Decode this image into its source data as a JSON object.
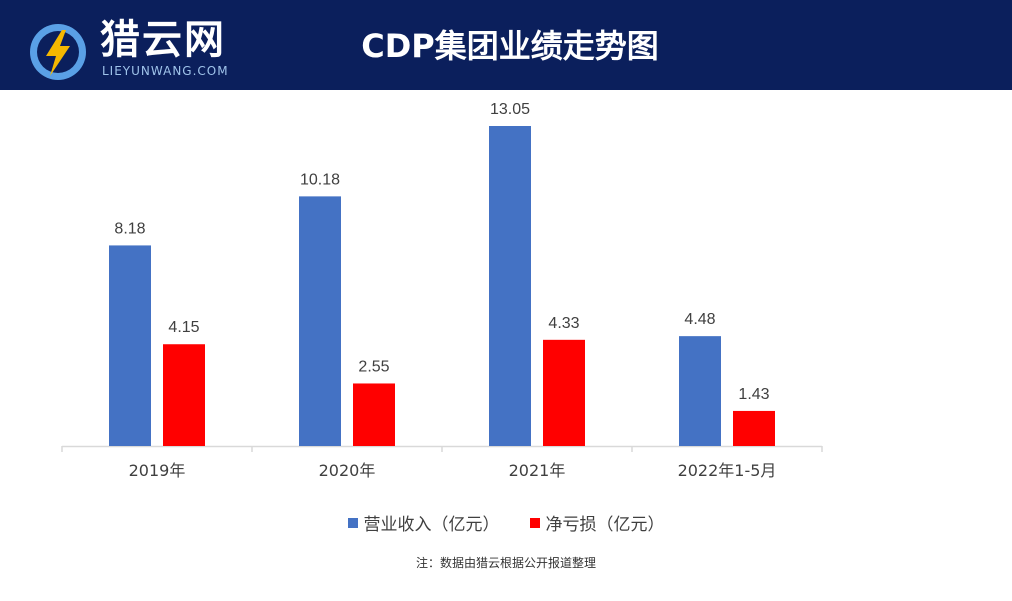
{
  "header": {
    "logo_name": "猎云网",
    "logo_sub": "LIEYUNWANG.COM",
    "logo_icon": "lightning-bolt-icon",
    "title": "CDP集团业绩走势图"
  },
  "colors": {
    "header_bg": "#0b1f5c",
    "revenue": "#4472c4",
    "loss": "#ff0000"
  },
  "chart_data": {
    "type": "bar",
    "title": "CDP集团业绩走势图",
    "categories": [
      "2019年",
      "2020年",
      "2021年",
      "2022年1-5月"
    ],
    "series": [
      {
        "name": "营业收入（亿元）",
        "values": [
          8.18,
          10.18,
          13.05,
          4.48
        ]
      },
      {
        "name": "净亏损（亿元）",
        "values": [
          4.15,
          2.55,
          4.33,
          1.43
        ]
      }
    ],
    "value_labels": {
      "revenue": [
        "8.18",
        "10.18",
        "13.05",
        "4.48"
      ],
      "loss": [
        "4.15",
        "2.55",
        "4.33",
        "1.43"
      ]
    },
    "xlabel": "",
    "ylabel": "",
    "ylim": [
      0,
      13.05
    ],
    "legend": "bottom",
    "grid": false
  },
  "legend": {
    "revenue_label": "营业收入（亿元）",
    "loss_label": "净亏损（亿元）"
  },
  "note": "注：数据由猎云根据公开报道整理"
}
